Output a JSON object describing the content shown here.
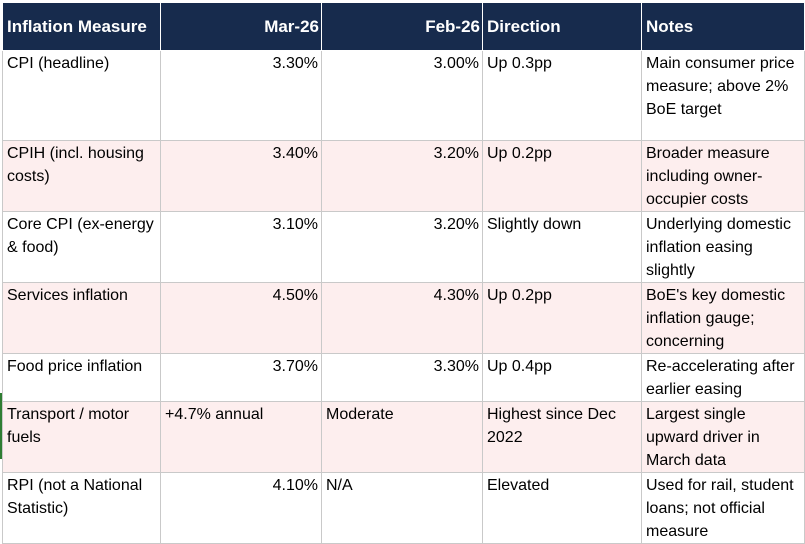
{
  "table": {
    "headers": [
      "Inflation Measure",
      "Mar-26",
      "Feb-26",
      "Direction",
      "Notes"
    ],
    "rows": [
      {
        "measure": "CPI (headline)",
        "mar": "3.30%",
        "feb": "3.00%",
        "direction": "Up 0.3pp",
        "notes": "Main consumer price measure; above 2% BoE target"
      },
      {
        "measure": "CPIH (incl. housing costs)",
        "mar": "3.40%",
        "feb": "3.20%",
        "direction": "Up 0.2pp",
        "notes": "Broader measure including owner-occupier costs"
      },
      {
        "measure": "Core CPI (ex-energy & food)",
        "mar": "3.10%",
        "feb": "3.20%",
        "direction": "Slightly down",
        "notes": "Underlying domestic inflation easing slightly"
      },
      {
        "measure": "Services inflation",
        "mar": "4.50%",
        "feb": "4.30%",
        "direction": "Up 0.2pp",
        "notes": "BoE's key domestic inflation gauge; concerning"
      },
      {
        "measure": "Food price inflation",
        "mar": "3.70%",
        "feb": "3.30%",
        "direction": "Up 0.4pp",
        "notes": "Re-accelerating after earlier easing"
      },
      {
        "measure": "Transport / motor fuels",
        "mar": "+4.7% annual",
        "feb": "Moderate",
        "direction": "Highest since Dec 2022",
        "notes": "Largest single upward driver in March data"
      },
      {
        "measure": "RPI (not a National Statistic)",
        "mar": "4.10%",
        "feb": "N/A",
        "direction": "Elevated",
        "notes": "Used for rail, student loans; not official measure"
      }
    ]
  }
}
